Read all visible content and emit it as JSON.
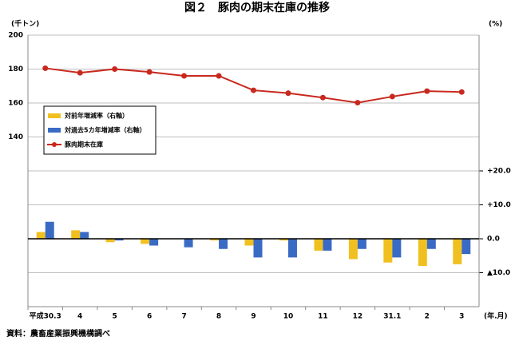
{
  "chart_data": {
    "type": "bar-line",
    "title": "図２　豚肉の期末在庫の推移",
    "y_label": "(千トン)",
    "y2_label": "(%)",
    "x_label": "(年.月)",
    "source": "資料：農畜産業振興機構調べ",
    "categories": [
      "平成30.3",
      "4",
      "5",
      "6",
      "7",
      "8",
      "9",
      "10",
      "11",
      "12",
      "31.1",
      "2",
      "3"
    ],
    "series": [
      {
        "name": "対前年増減率（右軸）",
        "type": "bar",
        "axis": "y2",
        "color": "#f0c020",
        "values": [
          2.0,
          2.5,
          -1.0,
          -1.5,
          0.0,
          -0.5,
          -2.0,
          -0.5,
          -3.5,
          -6.0,
          -7.0,
          -8.0,
          -7.5
        ]
      },
      {
        "name": "対過去5カ年増減率（右軸）",
        "type": "bar",
        "axis": "y2",
        "color": "#3a6bc4",
        "values": [
          5.0,
          2.0,
          -0.5,
          -2.0,
          -2.5,
          -3.0,
          -5.5,
          -5.5,
          -3.5,
          -3.0,
          -5.5,
          -3.0,
          -4.5
        ]
      },
      {
        "name": "豚肉期末在庫",
        "type": "line",
        "axis": "y",
        "color": "#c8281e",
        "values": [
          180.5,
          177.8,
          180.0,
          178.3,
          176.0,
          176.0,
          167.5,
          165.8,
          163.2,
          160.2,
          163.8,
          167.0,
          166.5
        ]
      }
    ],
    "ylim": [
      40,
      200
    ],
    "yticks": [
      140,
      160,
      180,
      200
    ],
    "y2lim": [
      -20,
      60
    ],
    "y2ticks": [
      {
        "value": -10,
        "label": "▲10.0"
      },
      {
        "value": 0,
        "label": "0.0"
      },
      {
        "value": 10,
        "label": "+10.0"
      },
      {
        "value": 20,
        "label": "+20.0"
      }
    ],
    "grid": true,
    "legend": "upper left"
  }
}
